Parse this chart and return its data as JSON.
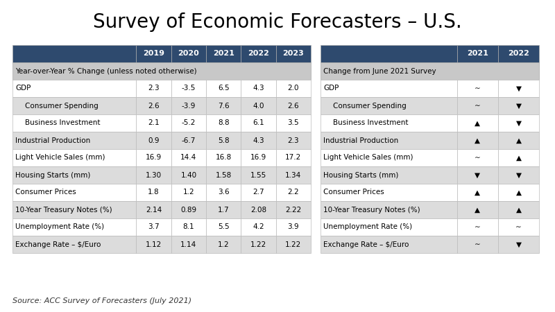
{
  "title": "Survey of Economic Forecasters – U.S.",
  "source": "Source: ACC Survey of Forecasters (July 2021)",
  "left_table": {
    "header_cols": [
      "",
      "2019",
      "2020",
      "2021",
      "2022",
      "2023"
    ],
    "section_row": "Year-over-Year % Change (unless noted otherwise)",
    "rows": [
      [
        "GDP",
        "2.3",
        "-3.5",
        "6.5",
        "4.3",
        "2.0"
      ],
      [
        "   Consumer Spending",
        "2.6",
        "-3.9",
        "7.6",
        "4.0",
        "2.6"
      ],
      [
        "   Business Investment",
        "2.1",
        "-5.2",
        "8.8",
        "6.1",
        "3.5"
      ],
      [
        "Industrial Production",
        "0.9",
        "-6.7",
        "5.8",
        "4.3",
        "2.3"
      ],
      [
        "Light Vehicle Sales (mm)",
        "16.9",
        "14.4",
        "16.8",
        "16.9",
        "17.2"
      ],
      [
        "Housing Starts (mm)",
        "1.30",
        "1.40",
        "1.58",
        "1.55",
        "1.34"
      ],
      [
        "Consumer Prices",
        "1.8",
        "1.2",
        "3.6",
        "2.7",
        "2.2"
      ],
      [
        "10-Year Treasury Notes (%)",
        "2.14",
        "0.89",
        "1.7",
        "2.08",
        "2.22"
      ],
      [
        "Unemployment Rate (%)",
        "3.7",
        "8.1",
        "5.5",
        "4.2",
        "3.9"
      ],
      [
        "Exchange Rate – $/Euro",
        "1.12",
        "1.14",
        "1.2",
        "1.22",
        "1.22"
      ]
    ]
  },
  "right_table": {
    "header_cols": [
      "",
      "2021",
      "2022"
    ],
    "section_row": "Change from June 2021 Survey",
    "rows": [
      [
        "GDP",
        "∼",
        "▼"
      ],
      [
        "   Consumer Spending",
        "∼",
        "▼"
      ],
      [
        "   Business Investment",
        "▲",
        "▼"
      ],
      [
        "Industrial Production",
        "▲",
        "▲"
      ],
      [
        "Light Vehicle Sales (mm)",
        "∼",
        "▲"
      ],
      [
        "Housing Starts (mm)",
        "▼",
        "▼"
      ],
      [
        "Consumer Prices",
        "▲",
        "▲"
      ],
      [
        "10-Year Treasury Notes (%)",
        "▲",
        "▲"
      ],
      [
        "Unemployment Rate (%)",
        "∼",
        "∼"
      ],
      [
        "Exchange Rate – $/Euro",
        "∼",
        "▼"
      ]
    ]
  },
  "header_bg": "#2E4A6E",
  "header_fg": "#FFFFFF",
  "section_bg": "#C8C8C8",
  "section_fg": "#000000",
  "row_bg_odd": "#FFFFFF",
  "row_bg_even": "#DCDCDC",
  "row_fg": "#000000",
  "bg_color": "#FFFFFF",
  "title_fontsize": 20,
  "header_fontsize": 8,
  "section_fontsize": 7.5,
  "data_fontsize": 7.5
}
